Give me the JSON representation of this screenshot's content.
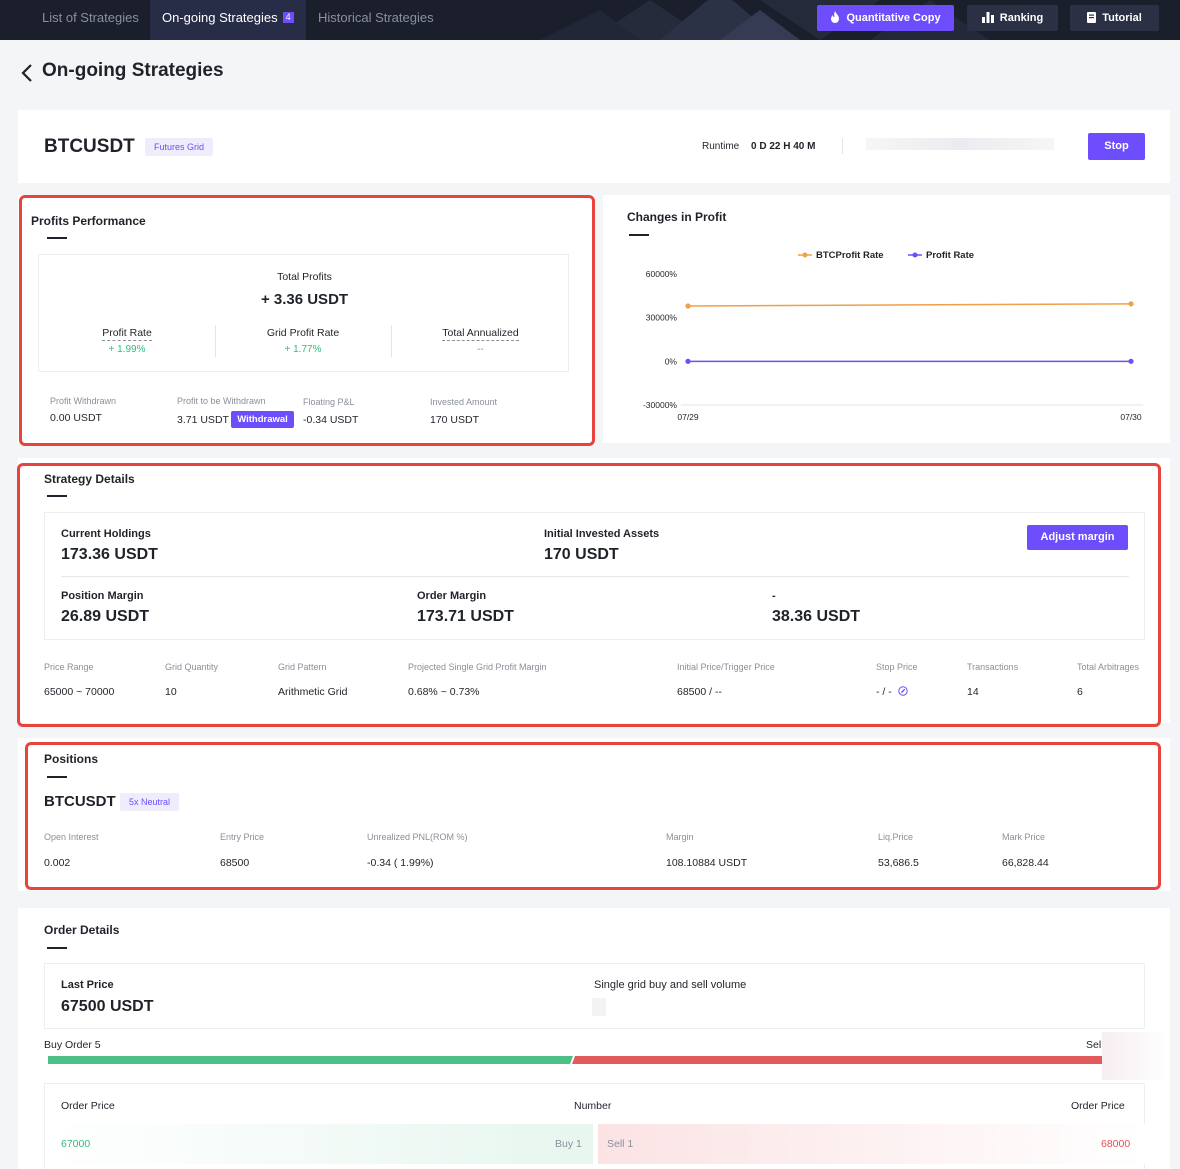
{
  "nav": {
    "tabs": [
      {
        "label": "List of Strategies"
      },
      {
        "label": "On-going Strategies",
        "badge": "4"
      },
      {
        "label": "Historical Strategies"
      }
    ],
    "buttons": [
      {
        "label": "Quantitative Copy",
        "icon": "fire-icon"
      },
      {
        "label": "Ranking",
        "icon": "bar-chart-icon"
      },
      {
        "label": "Tutorial",
        "icon": "book-icon"
      }
    ]
  },
  "page_title": "On-going Strategies",
  "strategy": {
    "symbol": "BTCUSDT",
    "type_tag": "Futures Grid",
    "runtime_label": "Runtime",
    "runtime_value": "0 D 22 H 40 M",
    "stop_label": "Stop"
  },
  "profits": {
    "title": "Profits Performance",
    "total_label": "Total Profits",
    "total_value": "+ 3.36 USDT",
    "profit_rate_label": "Profit Rate",
    "profit_rate_value": "+ 1.99%",
    "grid_rate_label": "Grid Profit Rate",
    "grid_rate_value": "+ 1.77%",
    "annualized_label": "Total Annualized",
    "annualized_value": "--",
    "withdrawn_label": "Profit Withdrawn",
    "withdrawn_value": "0.00 USDT",
    "to_withdraw_label": "Profit to be Withdrawn",
    "to_withdraw_value": "3.71 USDT",
    "withdrawal_button": "Withdrawal",
    "floating_label": "Floating P&L",
    "floating_value": "-0.34 USDT",
    "invested_label": "Invested Amount",
    "invested_value": "170 USDT"
  },
  "profit_chart": {
    "title": "Changes in Profit"
  },
  "chart_data": {
    "type": "line",
    "x": [
      "07/29",
      "07/30"
    ],
    "series": [
      {
        "name": "BTCProfit Rate",
        "color": "#f0a048",
        "values": [
          38000,
          39500
        ]
      },
      {
        "name": "Profit Rate",
        "color": "#6d4dfc",
        "values": [
          0,
          0
        ]
      }
    ],
    "yticks": [
      "60000%",
      "30000%",
      "0%",
      "-30000%"
    ],
    "ylim": [
      -30000,
      60000
    ],
    "legend": "top-center",
    "grid": false
  },
  "details": {
    "title": "Strategy Details",
    "current_holdings_label": "Current Holdings",
    "current_holdings_value": "173.36 USDT",
    "initial_label": "Initial Invested Assets",
    "initial_value": "170 USDT",
    "adjust_button": "Adjust margin",
    "position_margin_label": "Position Margin",
    "position_margin_value": "26.89 USDT",
    "order_margin_label": "Order Margin",
    "order_margin_value": "173.71 USDT",
    "third_label": "-",
    "third_value": "38.36 USDT",
    "params": [
      {
        "label": "Price Range",
        "value": "65000 ~ 70000"
      },
      {
        "label": "Grid Quantity",
        "value": "10"
      },
      {
        "label": "Grid Pattern",
        "value": "Arithmetic Grid"
      },
      {
        "label": "Projected Single Grid Profit Margin",
        "value": "0.68% ~ 0.73%"
      },
      {
        "label": "Initial Price/Trigger Price",
        "value": "68500 / --"
      },
      {
        "label": "Stop Price",
        "value": "- / -"
      },
      {
        "label": "Transactions",
        "value": "14"
      },
      {
        "label": "Total Arbitrages",
        "value": "6"
      }
    ]
  },
  "positions": {
    "title": "Positions",
    "symbol": "BTCUSDT",
    "tag": "5x Neutral",
    "cols": [
      {
        "label": "Open Interest",
        "value": "0.002"
      },
      {
        "label": "Entry Price",
        "value": "68500"
      },
      {
        "label": "Unrealized PNL(ROM %)",
        "value": "-0.34 ( 1.99%)"
      },
      {
        "label": "Margin",
        "value": "108.10884 USDT"
      },
      {
        "label": "Liq.Price",
        "value": "53,686.5"
      },
      {
        "label": "Mark Price",
        "value": "66,828.44"
      }
    ]
  },
  "orders": {
    "title": "Order Details",
    "last_price_label": "Last Price",
    "last_price_value": "67500 USDT",
    "single_grid_label": "Single grid buy and sell volume",
    "buy_order_label": "Buy Order 5",
    "sell_order_label": "Sel",
    "buy_share": 0.5,
    "table_headers": {
      "left": "Order Price",
      "mid": "Number",
      "right": "Order Price"
    },
    "rows": [
      {
        "buy_price": "67000",
        "buy_label": "Buy 1",
        "sell_label": "Sell 1",
        "sell_price": "68000"
      }
    ]
  }
}
